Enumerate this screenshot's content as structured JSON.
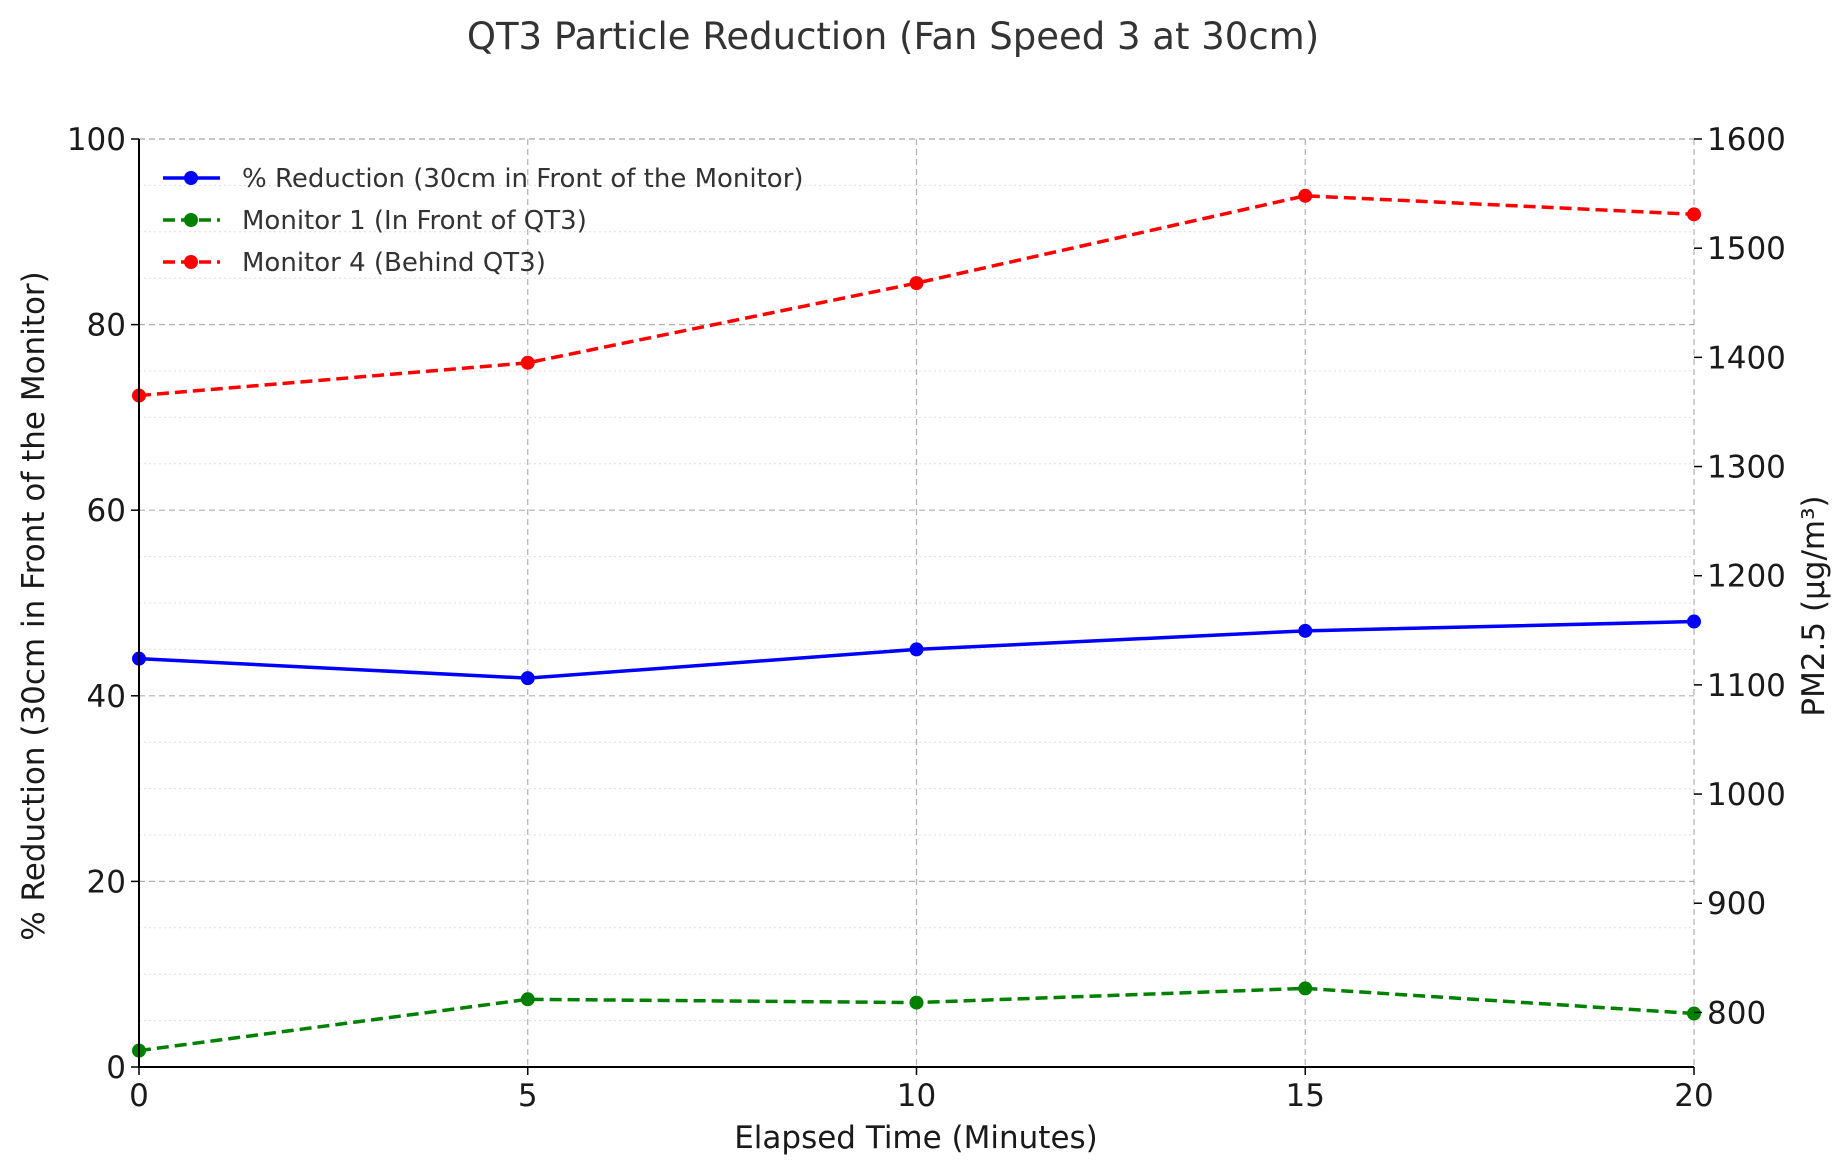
{
  "chart_data": {
    "type": "line",
    "title": "QT3 Particle Reduction (Fan Speed 3 at 30cm)",
    "xlabel": "Elapsed Time (Minutes)",
    "ylabel_left": "% Reduction (30cm in Front of the Monitor)",
    "ylabel_right": "PM2.5 (µg/m³)",
    "x": [
      0,
      5,
      10,
      15,
      20
    ],
    "xlim": [
      0,
      20
    ],
    "xticks": [
      "0",
      "5",
      "10",
      "15",
      "20"
    ],
    "ylim_left": [
      0,
      100
    ],
    "yticks_left": [
      "0",
      "20",
      "40",
      "60",
      "80",
      "100"
    ],
    "ylim_right": [
      750,
      1600
    ],
    "yticks_right": [
      "800",
      "900",
      "1000",
      "1100",
      "1200",
      "1300",
      "1400",
      "1500",
      "1600"
    ],
    "grid": true,
    "legend_position": "top-left",
    "series": [
      {
        "name": "% Reduction (30cm in Front of the Monitor)",
        "axis": "left",
        "color": "#0000ff",
        "style": "solid",
        "values": [
          44,
          41.9,
          45,
          47,
          48
        ]
      },
      {
        "name": "Monitor 1 (In Front of QT3)",
        "axis": "right",
        "color": "#008000",
        "style": "dashed",
        "values": [
          765,
          812,
          809,
          822,
          799
        ]
      },
      {
        "name": "Monitor 4 (Behind QT3)",
        "axis": "right",
        "color": "#ff0000",
        "style": "dashed",
        "values": [
          1365,
          1395,
          1468,
          1548,
          1531
        ]
      }
    ]
  }
}
